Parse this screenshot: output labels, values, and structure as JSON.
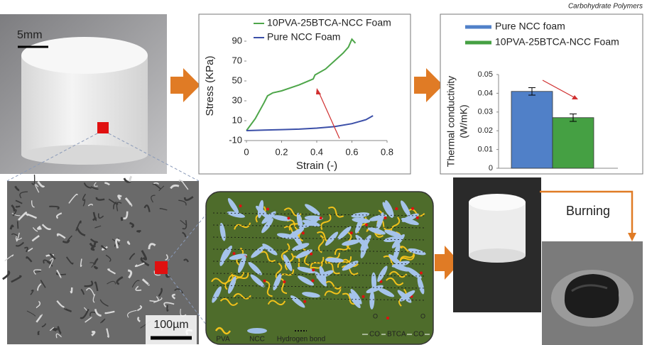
{
  "header": {
    "journal": "Carbohydrate Polymers"
  },
  "photo": {
    "scale_bar": "5mm"
  },
  "sem": {
    "scale_bar": "100µm"
  },
  "schematic": {
    "legend": [
      "PVA",
      "NCC",
      "Hydrogen bond"
    ],
    "formula": {
      "oxygen": "O",
      "group": "CO",
      "linker": "BTCA"
    }
  },
  "burning": {
    "label": "Burning"
  },
  "chart_data": [
    {
      "type": "line",
      "xlabel": "Strain (-)",
      "ylabel": "Stress (KPa)",
      "xlim": [
        0,
        0.8
      ],
      "xticks": [
        0,
        0.2,
        0.4,
        0.6,
        0.8
      ],
      "ylim": [
        -10,
        100
      ],
      "yticks": [
        -10,
        10,
        30,
        50,
        70,
        90
      ],
      "series": [
        {
          "name": "10PVA-25BTCA-NCC Foam",
          "color": "#4ea64a",
          "x": [
            0,
            0.05,
            0.1,
            0.12,
            0.15,
            0.2,
            0.3,
            0.38,
            0.39,
            0.45,
            0.5,
            0.55,
            0.58,
            0.6,
            0.62
          ],
          "values": [
            0,
            12,
            28,
            35,
            38,
            40,
            46,
            52,
            56,
            62,
            70,
            78,
            84,
            92,
            88
          ]
        },
        {
          "name": "Pure NCC Foam",
          "color": "#3b4fa8",
          "x": [
            0,
            0.1,
            0.2,
            0.3,
            0.4,
            0.5,
            0.6,
            0.68,
            0.72
          ],
          "values": [
            0,
            0.5,
            1,
            1.5,
            2.5,
            4,
            7,
            11,
            15
          ]
        }
      ]
    },
    {
      "type": "bar",
      "ylabel": [
        "Thermal conductivity",
        "(W/mK)"
      ],
      "ylim": [
        0,
        0.05
      ],
      "yticks": [
        0,
        0.01,
        0.02,
        0.03,
        0.04,
        0.05
      ],
      "series": [
        {
          "name": "Pure NCC foam",
          "color": "#5080c8",
          "values": [
            0.041
          ],
          "errors": [
            0.002
          ]
        },
        {
          "name": "10PVA-25BTCA-NCC Foam",
          "color": "#45a043",
          "values": [
            0.027
          ],
          "errors": [
            0.002
          ]
        }
      ]
    }
  ]
}
